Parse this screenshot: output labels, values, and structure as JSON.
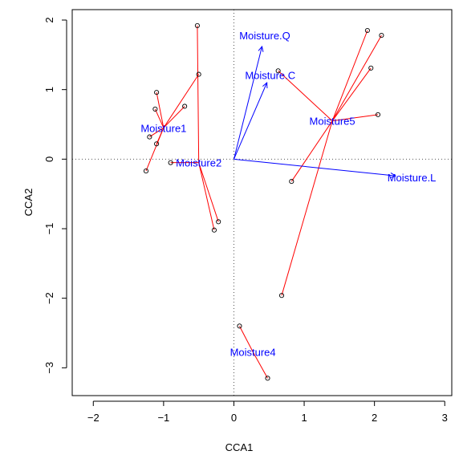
{
  "chart_data": {
    "type": "scatter",
    "xlabel": "CCA1",
    "ylabel": "CCA2",
    "xlim": [
      -2.3,
      3.1
    ],
    "ylim": [
      -3.4,
      2.15
    ],
    "x_ticks": [
      -2,
      -1,
      0,
      1,
      2,
      3
    ],
    "x_tick_labels": [
      "−2",
      "−1",
      "0",
      "1",
      "2",
      "3"
    ],
    "y_ticks": [
      -3,
      -2,
      -1,
      0,
      1,
      2
    ],
    "y_tick_labels": [
      "−3",
      "−2",
      "−1",
      "0",
      "1",
      "2"
    ],
    "reference_lines": {
      "x": 0,
      "y": 0,
      "style": "dotted"
    },
    "groups": [
      {
        "label": "Moisture1",
        "centroid": [
          -1.0,
          0.45
        ],
        "sites": [
          [
            -1.1,
            0.96
          ],
          [
            -1.12,
            0.72
          ],
          [
            -0.7,
            0.76
          ],
          [
            -1.2,
            0.32
          ],
          [
            -1.1,
            0.22
          ],
          [
            -1.25,
            -0.17
          ],
          [
            -0.5,
            1.22
          ]
        ]
      },
      {
        "label": "Moisture2",
        "centroid": [
          -0.5,
          -0.05
        ],
        "sites": [
          [
            -0.52,
            1.92
          ],
          [
            -0.9,
            -0.05
          ],
          [
            -0.22,
            -0.9
          ],
          [
            -0.28,
            -1.02
          ]
        ]
      },
      {
        "label": "Moisture4",
        "centroid": [
          0.27,
          -2.77
        ],
        "sites": [
          [
            0.08,
            -2.4
          ],
          [
            0.48,
            -3.15
          ]
        ]
      },
      {
        "label": "Moisture5",
        "centroid": [
          1.4,
          0.55
        ],
        "sites": [
          [
            0.63,
            1.27
          ],
          [
            1.9,
            1.85
          ],
          [
            2.1,
            1.78
          ],
          [
            1.95,
            1.31
          ],
          [
            2.05,
            0.64
          ],
          [
            0.82,
            -0.32
          ],
          [
            0.68,
            -1.96
          ]
        ]
      }
    ],
    "vectors": [
      {
        "label": "Moisture.Q",
        "x": 0.4,
        "y": 1.62
      },
      {
        "label": "Moisture.C",
        "x": 0.47,
        "y": 1.1
      },
      {
        "label": "Moisture.L",
        "x": 2.3,
        "y": -0.24
      }
    ],
    "colors": {
      "spider": "#ff0000",
      "vector": "#0000ff",
      "point": "#000000"
    }
  }
}
